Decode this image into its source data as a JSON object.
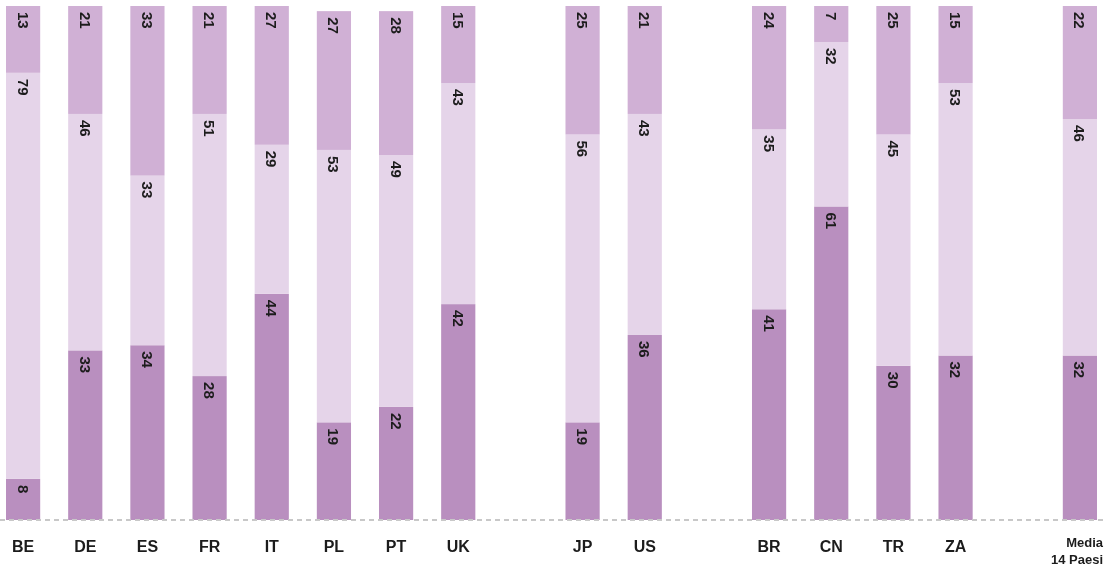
{
  "chart_data": {
    "type": "bar",
    "stacked": true,
    "data_labels": true,
    "tick_labels": "x",
    "ylim": [
      0,
      100
    ],
    "categories": [
      "BE",
      "DE",
      "ES",
      "FR",
      "IT",
      "PL",
      "PT",
      "UK",
      null,
      "JP",
      "US",
      null,
      "BR",
      "CN",
      "TR",
      "ZA",
      null,
      "Media 14 Paesi"
    ],
    "series": [
      {
        "color": "#b98fbf",
        "values": [
          8,
          33,
          34,
          28,
          44,
          19,
          22,
          42,
          null,
          19,
          36,
          null,
          41,
          61,
          30,
          32,
          null,
          32
        ]
      },
      {
        "color": "#e5d4e9",
        "values": [
          79,
          46,
          33,
          51,
          29,
          53,
          49,
          43,
          null,
          56,
          43,
          null,
          35,
          32,
          45,
          53,
          null,
          46
        ]
      },
      {
        "color": "#d0b0d5",
        "values": [
          13,
          21,
          33,
          21,
          27,
          27,
          28,
          15,
          null,
          25,
          21,
          null,
          24,
          7,
          25,
          15,
          null,
          22
        ]
      }
    ]
  }
}
